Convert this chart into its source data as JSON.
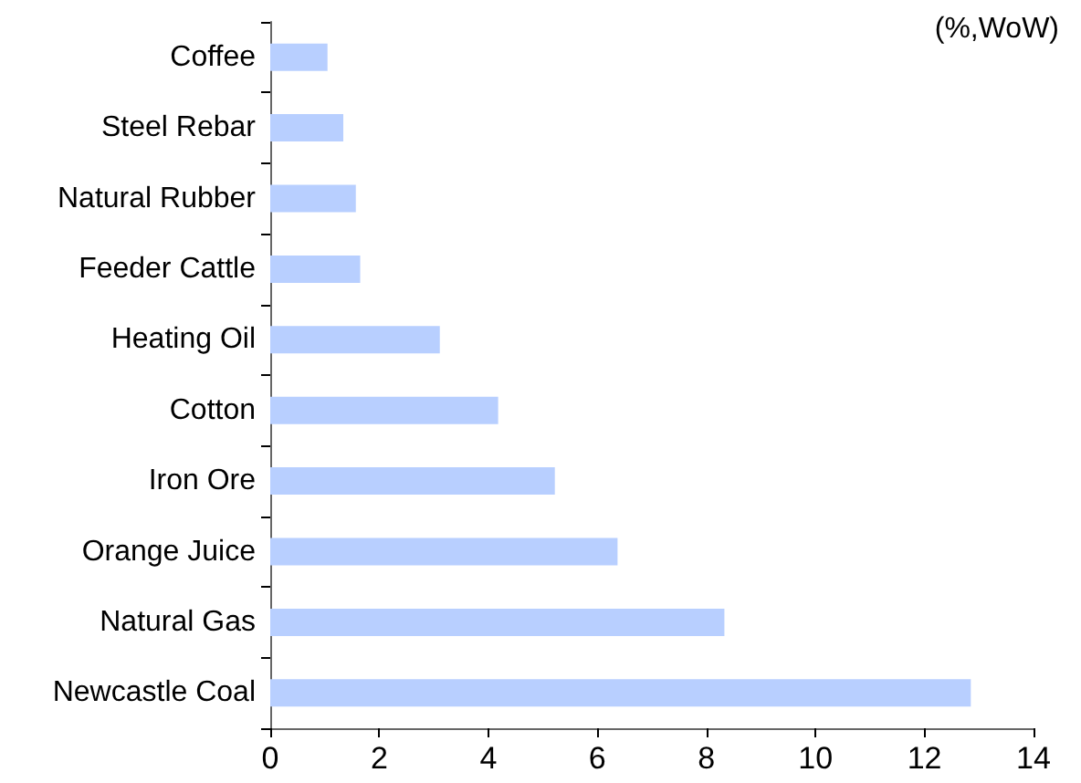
{
  "chart_data": {
    "type": "bar",
    "orientation": "horizontal",
    "categories": [
      "Coffee",
      "Steel Rebar",
      "Natural Rubber",
      "Feeder Cattle",
      "Heating Oil",
      "Cotton",
      "Iron Ore",
      "Orange Juice",
      "Natural Gas",
      "Newcastle Coal"
    ],
    "values": [
      1.05,
      1.34,
      1.57,
      1.65,
      3.11,
      4.18,
      5.22,
      6.37,
      8.33,
      12.85
    ],
    "color": "#b8cfff",
    "xlim": [
      0,
      14
    ],
    "xticks": [
      0,
      2,
      4,
      6,
      8,
      10,
      12,
      14
    ],
    "annotations": [
      "(%,WoW)"
    ],
    "grid": false
  }
}
